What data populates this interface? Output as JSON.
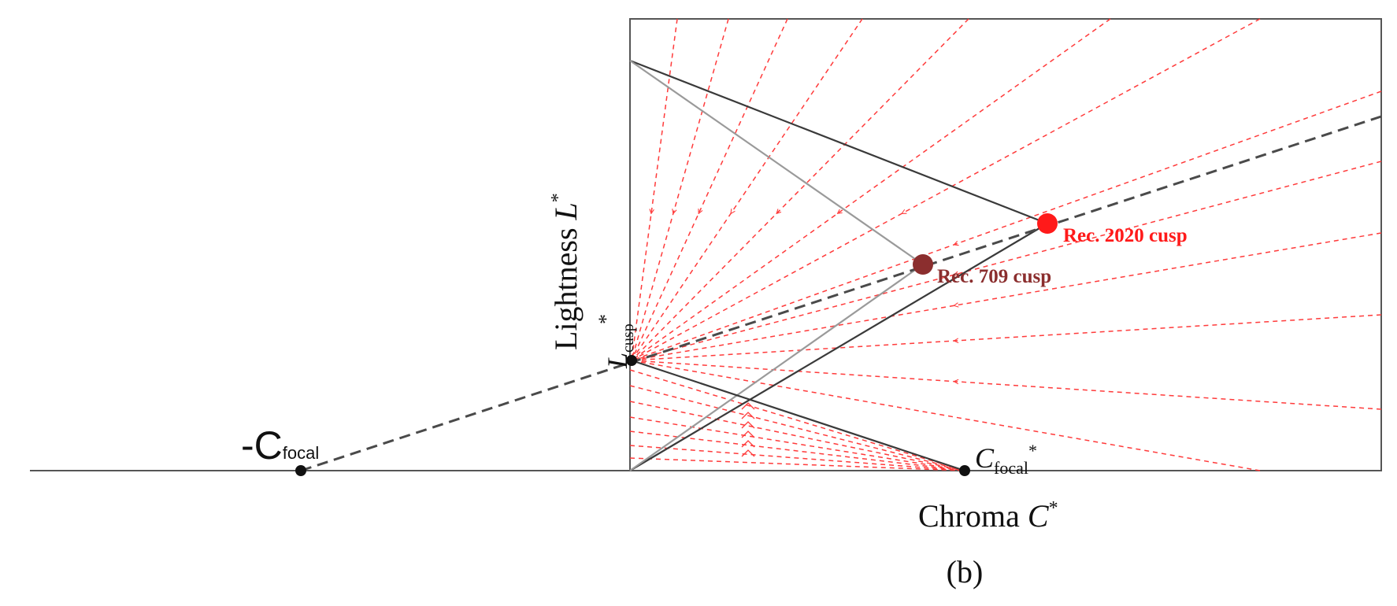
{
  "colors": {
    "frame": "#555555",
    "mapping_line": "#ff3b3b",
    "rec2020": "#ff1a1a",
    "rec709": "#8b2e2e",
    "dark_boundary": "#3a3a3a",
    "light_boundary": "#9a9a9a"
  },
  "labels": {
    "y_axis_main": "Lightness ",
    "y_axis_symbol": "L",
    "y_axis_star": "*",
    "x_axis_main": "Chroma ",
    "x_axis_symbol": "C",
    "x_axis_star": "*",
    "caption": "(b)",
    "neg_focal_main": "-C",
    "neg_focal_sub": "focal",
    "cfocal_main": "C",
    "cfocal_sub": "focal",
    "cfocal_star": "*",
    "lcusp_main": "L",
    "lcusp_sub": "cusp",
    "lcusp_star": "*",
    "rec2020_label": "Rec. 2020 cusp",
    "rec709_label": "Rec. 709 cusp"
  },
  "points": {
    "rec2020_cusp": "Rec. 2020 cusp",
    "rec709_cusp": "Rec. 709 cusp"
  }
}
